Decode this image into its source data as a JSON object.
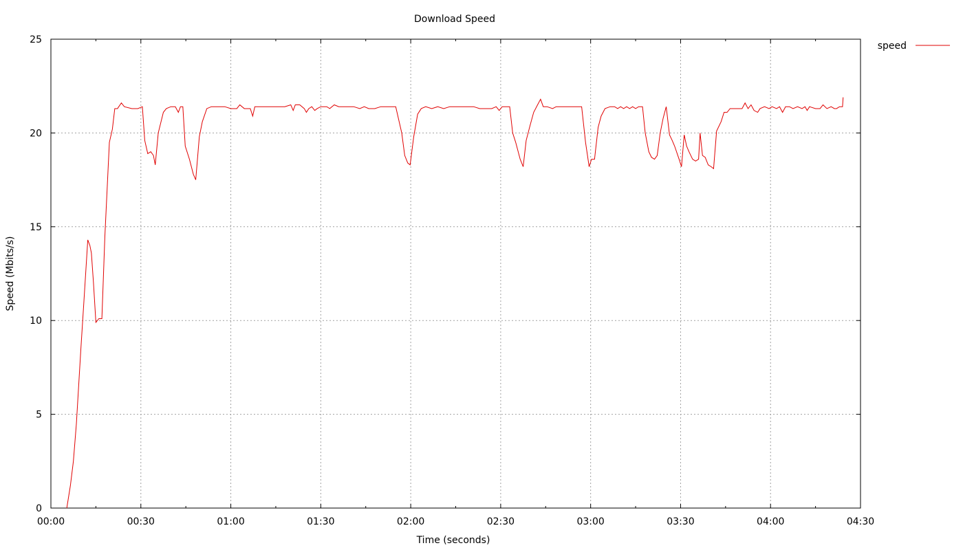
{
  "chart_data": {
    "type": "line",
    "title": "Download Speed",
    "xlabel": "Time (seconds)",
    "ylabel": "Speed (Mbits/s)",
    "xlim": [
      0,
      270
    ],
    "ylim": [
      0,
      25
    ],
    "x_ticks": [
      {
        "value": 0,
        "label": "00:00"
      },
      {
        "value": 30,
        "label": "00:30"
      },
      {
        "value": 60,
        "label": "01:00"
      },
      {
        "value": 90,
        "label": "01:30"
      },
      {
        "value": 120,
        "label": "02:00"
      },
      {
        "value": 150,
        "label": "02:30"
      },
      {
        "value": 180,
        "label": "03:00"
      },
      {
        "value": 210,
        "label": "03:30"
      },
      {
        "value": 240,
        "label": "04:00"
      },
      {
        "value": 270,
        "label": "04:30"
      }
    ],
    "y_ticks": [
      {
        "value": 0,
        "label": "0"
      },
      {
        "value": 5,
        "label": "5"
      },
      {
        "value": 10,
        "label": "10"
      },
      {
        "value": 15,
        "label": "15"
      },
      {
        "value": 20,
        "label": "20"
      },
      {
        "value": 25,
        "label": "25"
      }
    ],
    "grid": true,
    "legend": "outside-top-right",
    "series": [
      {
        "name": "speed",
        "color": "#e00000",
        "points": [
          [
            5.3,
            0
          ],
          [
            6.5,
            1.2
          ],
          [
            7.5,
            2.5
          ],
          [
            8.5,
            4.5
          ],
          [
            10,
            8.5
          ],
          [
            11,
            11
          ],
          [
            12.3,
            14.3
          ],
          [
            13,
            14.0
          ],
          [
            13.5,
            13.6
          ],
          [
            14.2,
            12.0
          ],
          [
            15,
            9.9
          ],
          [
            16,
            10.1
          ],
          [
            17,
            10.1
          ],
          [
            18,
            14.5
          ],
          [
            19.5,
            19.5
          ],
          [
            20.5,
            20.2
          ],
          [
            21.3,
            21.3
          ],
          [
            22.2,
            21.3
          ],
          [
            23.5,
            21.6
          ],
          [
            24.5,
            21.4
          ],
          [
            27,
            21.3
          ],
          [
            29,
            21.3
          ],
          [
            30.5,
            21.4
          ],
          [
            31.3,
            19.6
          ],
          [
            32.3,
            18.9
          ],
          [
            33.3,
            19.0
          ],
          [
            34.2,
            18.8
          ],
          [
            34.8,
            18.3
          ],
          [
            35.8,
            20.0
          ],
          [
            37.5,
            21.1
          ],
          [
            38.5,
            21.3
          ],
          [
            40,
            21.4
          ],
          [
            41.5,
            21.4
          ],
          [
            42.5,
            21.1
          ],
          [
            43.2,
            21.4
          ],
          [
            44,
            21.4
          ],
          [
            44.8,
            19.3
          ],
          [
            46.2,
            18.6
          ],
          [
            47.5,
            17.8
          ],
          [
            48.3,
            17.5
          ],
          [
            49.5,
            19.8
          ],
          [
            50.5,
            20.6
          ],
          [
            52,
            21.3
          ],
          [
            53.5,
            21.4
          ],
          [
            56,
            21.4
          ],
          [
            58,
            21.4
          ],
          [
            60,
            21.3
          ],
          [
            62,
            21.3
          ],
          [
            63,
            21.5
          ],
          [
            64.5,
            21.3
          ],
          [
            66.5,
            21.3
          ],
          [
            67.3,
            20.9
          ],
          [
            68,
            21.4
          ],
          [
            70,
            21.4
          ],
          [
            73,
            21.4
          ],
          [
            76,
            21.4
          ],
          [
            78,
            21.4
          ],
          [
            80,
            21.5
          ],
          [
            80.8,
            21.2
          ],
          [
            81.5,
            21.5
          ],
          [
            83,
            21.5
          ],
          [
            84.5,
            21.3
          ],
          [
            85.2,
            21.1
          ],
          [
            86,
            21.3
          ],
          [
            87,
            21.4
          ],
          [
            88,
            21.2
          ],
          [
            88.8,
            21.3
          ],
          [
            90,
            21.4
          ],
          [
            92,
            21.4
          ],
          [
            93,
            21.3
          ],
          [
            94.5,
            21.5
          ],
          [
            96,
            21.4
          ],
          [
            99,
            21.4
          ],
          [
            101,
            21.4
          ],
          [
            103,
            21.3
          ],
          [
            104.5,
            21.4
          ],
          [
            106,
            21.3
          ],
          [
            108,
            21.3
          ],
          [
            110,
            21.4
          ],
          [
            113,
            21.4
          ],
          [
            115,
            21.4
          ],
          [
            117,
            20.0
          ],
          [
            118,
            18.8
          ],
          [
            119,
            18.4
          ],
          [
            119.8,
            18.3
          ],
          [
            121,
            19.8
          ],
          [
            122.3,
            21.0
          ],
          [
            123.5,
            21.3
          ],
          [
            125,
            21.4
          ],
          [
            127,
            21.3
          ],
          [
            129,
            21.4
          ],
          [
            131,
            21.3
          ],
          [
            133,
            21.4
          ],
          [
            135,
            21.4
          ],
          [
            137,
            21.4
          ],
          [
            139,
            21.4
          ],
          [
            141,
            21.4
          ],
          [
            143,
            21.3
          ],
          [
            145,
            21.3
          ],
          [
            147,
            21.3
          ],
          [
            148.5,
            21.4
          ],
          [
            149.5,
            21.2
          ],
          [
            150.5,
            21.4
          ],
          [
            153,
            21.4
          ],
          [
            154,
            20.0
          ],
          [
            155,
            19.5
          ],
          [
            156.5,
            18.6
          ],
          [
            157.5,
            18.2
          ],
          [
            158.5,
            19.6
          ],
          [
            159.8,
            20.4
          ],
          [
            161,
            21.1
          ],
          [
            162.3,
            21.5
          ],
          [
            163.3,
            21.8
          ],
          [
            164.2,
            21.4
          ],
          [
            165.5,
            21.4
          ],
          [
            167.3,
            21.3
          ],
          [
            168.5,
            21.4
          ],
          [
            171,
            21.4
          ],
          [
            173,
            21.4
          ],
          [
            175.5,
            21.4
          ],
          [
            177,
            21.4
          ],
          [
            178.3,
            19.5
          ],
          [
            179.5,
            18.2
          ],
          [
            180.3,
            18.6
          ],
          [
            181.3,
            18.6
          ],
          [
            182.5,
            20.3
          ],
          [
            183.5,
            20.9
          ],
          [
            184.8,
            21.3
          ],
          [
            186.5,
            21.4
          ],
          [
            188,
            21.4
          ],
          [
            189,
            21.3
          ],
          [
            190,
            21.4
          ],
          [
            191,
            21.3
          ],
          [
            192,
            21.4
          ],
          [
            193,
            21.3
          ],
          [
            194,
            21.4
          ],
          [
            195,
            21.3
          ],
          [
            196,
            21.4
          ],
          [
            197.3,
            21.4
          ],
          [
            198.2,
            20.0
          ],
          [
            199.4,
            19.0
          ],
          [
            200.3,
            18.7
          ],
          [
            201.3,
            18.6
          ],
          [
            202.2,
            18.8
          ],
          [
            203.2,
            20.0
          ],
          [
            204.2,
            20.8
          ],
          [
            205.2,
            21.4
          ],
          [
            206.3,
            19.9
          ],
          [
            207.2,
            19.6
          ],
          [
            208,
            19.3
          ],
          [
            209.5,
            18.6
          ],
          [
            210.3,
            18.2
          ],
          [
            211.2,
            19.9
          ],
          [
            212,
            19.3
          ],
          [
            212.8,
            19.0
          ],
          [
            214,
            18.6
          ],
          [
            215,
            18.5
          ],
          [
            216,
            18.6
          ],
          [
            216.5,
            20.0
          ],
          [
            217.3,
            18.8
          ],
          [
            218.2,
            18.7
          ],
          [
            219.2,
            18.3
          ],
          [
            220.2,
            18.2
          ],
          [
            221,
            18.1
          ],
          [
            222,
            20.1
          ],
          [
            223.5,
            20.6
          ],
          [
            224.5,
            21.1
          ],
          [
            225.5,
            21.1
          ],
          [
            226.5,
            21.3
          ],
          [
            229,
            21.3
          ],
          [
            230.5,
            21.3
          ],
          [
            231.5,
            21.6
          ],
          [
            232.5,
            21.3
          ],
          [
            233.5,
            21.5
          ],
          [
            234.5,
            21.2
          ],
          [
            235.7,
            21.1
          ],
          [
            236.5,
            21.3
          ],
          [
            238,
            21.4
          ],
          [
            239.5,
            21.3
          ],
          [
            240.5,
            21.4
          ],
          [
            242,
            21.3
          ],
          [
            243,
            21.4
          ],
          [
            244,
            21.1
          ],
          [
            245,
            21.4
          ],
          [
            246.3,
            21.4
          ],
          [
            247.5,
            21.3
          ],
          [
            249,
            21.4
          ],
          [
            250.5,
            21.3
          ],
          [
            251.5,
            21.4
          ],
          [
            252.2,
            21.2
          ],
          [
            253,
            21.4
          ],
          [
            255,
            21.3
          ],
          [
            256.5,
            21.3
          ],
          [
            257.5,
            21.5
          ],
          [
            258.8,
            21.3
          ],
          [
            260.2,
            21.4
          ],
          [
            261.3,
            21.3
          ],
          [
            262,
            21.3
          ],
          [
            263,
            21.4
          ],
          [
            264,
            21.4
          ],
          [
            264.2,
            21.9
          ]
        ]
      }
    ]
  }
}
